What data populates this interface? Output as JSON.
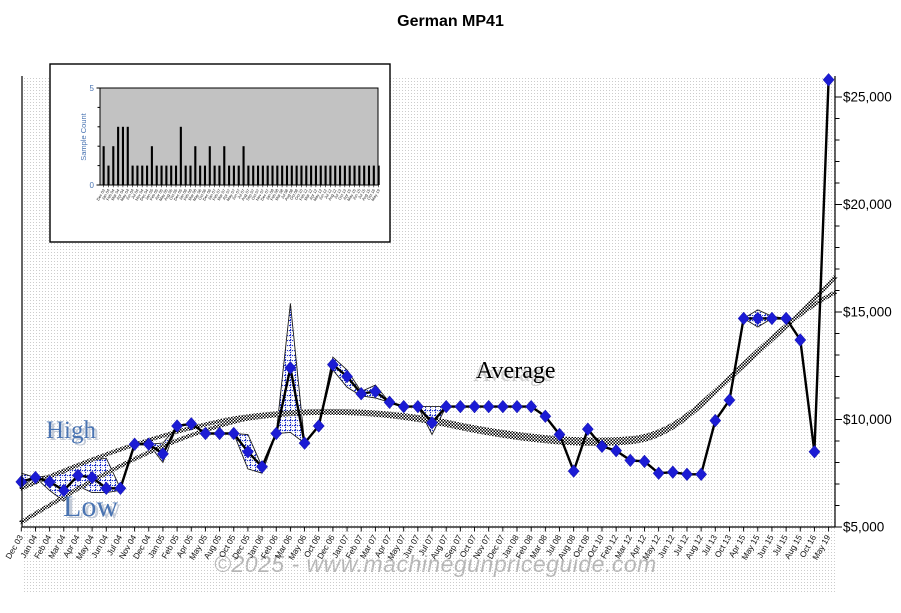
{
  "title": "German MP41",
  "watermark": "©2025 - www.machinegunpriceguide.com",
  "labels": {
    "high": "High",
    "low": "Low",
    "average": "Average"
  },
  "colors": {
    "marker_blue": "#1b1bd4",
    "band_hatch_blue": "#2233cc",
    "label_blue": "#4a74b2",
    "watermark_gray": "#b6b6b6",
    "inset_plot_gray": "#c2c2c2",
    "grid_dot_gray": "#cccccc"
  },
  "y_axis": {
    "tick_labels": [
      "$25,000",
      "$20,000",
      "$15,000",
      "$10,000",
      "$5,000"
    ],
    "tick_values": [
      25000,
      20000,
      15000,
      10000,
      5000
    ],
    "min": 5000,
    "max": 25000,
    "minor_step": 1000,
    "side": "right"
  },
  "chart_data": [
    {
      "type": "line",
      "title": "German MP41",
      "ylim": [
        5000,
        25000
      ],
      "grid": "dotted-fill",
      "legend_position": "in-plot-text-labels",
      "marker": "diamond",
      "categories": [
        "Dec 03",
        "Jan 04",
        "Feb 04",
        "Mar 04",
        "Apr 04",
        "May 04",
        "Jun 04",
        "Jul 04",
        "Nov 04",
        "Dec 04",
        "Jan 05",
        "Feb 05",
        "Apr 05",
        "May 05",
        "Aug 05",
        "Oct 05",
        "Dec 05",
        "Jan 06",
        "Feb 06",
        "Mar 06",
        "May 06",
        "Oct 06",
        "Dec 06",
        "Jan 07",
        "Feb 07",
        "Mar 07",
        "Apr 07",
        "May 07",
        "Jun 07",
        "Jul 07",
        "Aug 07",
        "Sep 07",
        "Oct 07",
        "Nov 07",
        "Dec 07",
        "Jan 08",
        "Feb 08",
        "Mar 08",
        "Jul 08",
        "Aug 08",
        "Oct 08",
        "Oct 10",
        "Feb 12",
        "Mar 12",
        "Apr 12",
        "May 12",
        "Jun 12",
        "Jul 12",
        "Aug 12",
        "Jul 13",
        "Oct 13",
        "Apr 15",
        "May 15",
        "Jun 15",
        "Jul 15",
        "Aug 15",
        "Oct 16",
        "May 19"
      ],
      "series": [
        {
          "name": "Average",
          "style": "thick-black-line-blue-diamonds",
          "values": [
            7100,
            7300,
            7100,
            6700,
            7400,
            7300,
            6800,
            6800,
            8850,
            8850,
            8400,
            9700,
            9800,
            9350,
            9350,
            9350,
            8500,
            7800,
            9350,
            12400,
            8900,
            9700,
            12550,
            12000,
            11200,
            11300,
            10800,
            10600,
            10600,
            9850,
            10600,
            10600,
            10600,
            10600,
            10600,
            10600,
            10600,
            10150,
            9300,
            7600,
            9550,
            8750,
            8550,
            8100,
            8050,
            7500,
            7550,
            7450,
            7450,
            9950,
            10900,
            14700,
            14700,
            14700,
            14700,
            13700,
            8500,
            25800
          ]
        },
        {
          "name": "High",
          "style": "thin-black-line",
          "values": [
            7500,
            7300,
            7400,
            7500,
            7900,
            8100,
            8200,
            6800,
            8850,
            8850,
            8900,
            9700,
            9800,
            9350,
            9350,
            9350,
            9300,
            7800,
            9350,
            15400,
            8900,
            9700,
            12900,
            12300,
            11300,
            11600,
            10800,
            10600,
            10600,
            10600,
            10600,
            10600,
            10600,
            10600,
            10600,
            10600,
            10600,
            10150,
            9300,
            7600,
            9550,
            8750,
            8550,
            8100,
            8050,
            7500,
            7550,
            7450,
            7450,
            9950,
            10900,
            14700,
            15100,
            14800,
            14700,
            13700,
            8500,
            25800
          ]
        },
        {
          "name": "Low",
          "style": "thin-black-line",
          "values": [
            6900,
            7300,
            6700,
            6200,
            6900,
            6600,
            6600,
            6700,
            8850,
            8850,
            8000,
            9700,
            9800,
            9350,
            9350,
            9350,
            7700,
            7500,
            9350,
            9400,
            8900,
            9700,
            12300,
            11500,
            11100,
            11000,
            10800,
            10600,
            10600,
            9300,
            10600,
            10600,
            10600,
            10600,
            10600,
            10600,
            10600,
            10150,
            9300,
            7600,
            9550,
            8750,
            8550,
            8100,
            8050,
            7500,
            7550,
            7450,
            7450,
            9950,
            10900,
            14700,
            14300,
            14700,
            14700,
            13700,
            8500,
            25800
          ]
        },
        {
          "name": "High trend",
          "style": "hatched-smooth-curve",
          "values": []
        },
        {
          "name": "Low trend",
          "style": "hatched-smooth-curve",
          "values": []
        }
      ]
    },
    {
      "type": "bar",
      "title": "",
      "ylabel": "Sample Count",
      "ylim": [
        0,
        5
      ],
      "y_tick_labels": [
        "0",
        "5"
      ],
      "bar_color": "#000000",
      "categories": [
        "Dec 03",
        "Jan 04",
        "Feb 04",
        "Mar 04",
        "Apr 04",
        "May 04",
        "Jun 04",
        "Jul 04",
        "Nov 04",
        "Dec 04",
        "Jan 05",
        "Feb 05",
        "Apr 05",
        "May 05",
        "Aug 05",
        "Oct 05",
        "Dec 05",
        "Jan 06",
        "Feb 06",
        "Mar 06",
        "May 06",
        "Oct 06",
        "Dec 06",
        "Jan 07",
        "Feb 07",
        "Mar 07",
        "Apr 07",
        "May 07",
        "Jun 07",
        "Jul 07",
        "Aug 07",
        "Sep 07",
        "Oct 07",
        "Nov 07",
        "Dec 07",
        "Jan 08",
        "Feb 08",
        "Mar 08",
        "Jul 08",
        "Aug 08",
        "Oct 08",
        "Oct 10",
        "Feb 12",
        "Mar 12",
        "Apr 12",
        "May 12",
        "Jun 12",
        "Jul 12",
        "Aug 12",
        "Jul 13",
        "Oct 13",
        "Apr 15",
        "May 15",
        "Jun 15",
        "Jul 15",
        "Aug 15",
        "Oct 16",
        "May 19"
      ],
      "values": [
        2,
        1,
        2,
        3,
        3,
        3,
        1,
        1,
        1,
        1,
        2,
        1,
        1,
        1,
        1,
        1,
        3,
        1,
        1,
        2,
        1,
        1,
        2,
        1,
        1,
        2,
        1,
        1,
        1,
        2,
        1,
        1,
        1,
        1,
        1,
        1,
        1,
        1,
        1,
        1,
        1,
        1,
        1,
        1,
        1,
        1,
        1,
        1,
        1,
        1,
        1,
        1,
        1,
        1,
        1,
        1,
        1,
        1
      ]
    }
  ]
}
